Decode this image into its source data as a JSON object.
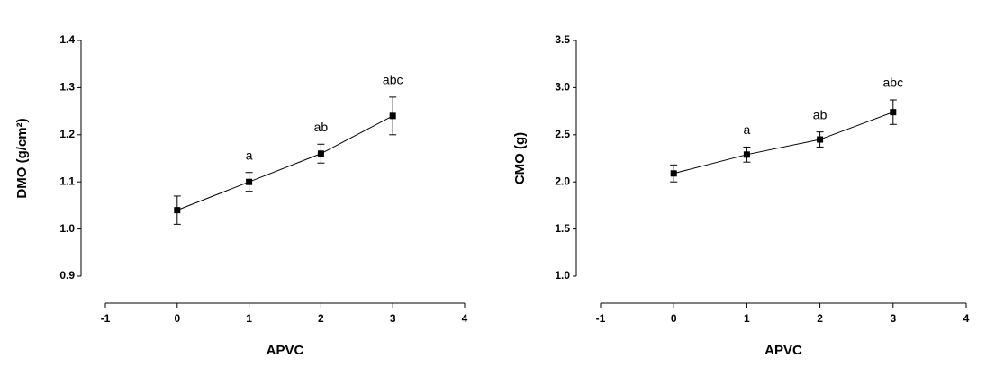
{
  "chart_data": [
    {
      "type": "line",
      "xlabel": "APVC",
      "ylabel": "DMO (g/cm²)",
      "x": [
        0,
        1,
        2,
        3
      ],
      "values": [
        1.04,
        1.1,
        1.16,
        1.24
      ],
      "errors": [
        0.03,
        0.02,
        0.02,
        0.04
      ],
      "value_labels": [
        null,
        "a",
        "ab",
        "abc"
      ],
      "color": "#000000",
      "xlim": [
        -1,
        4
      ],
      "xticks": [
        -1,
        0,
        1,
        2,
        3,
        4
      ],
      "ylim": [
        0.9,
        1.4
      ],
      "yticks": [
        0.9,
        {
          "value": 1.0,
          "label": "1.0"
        },
        1.1,
        1.2,
        1.3,
        1.4
      ]
    },
    {
      "type": "line",
      "xlabel": "APVC",
      "ylabel": "CMO (g)",
      "x": [
        0,
        1,
        2,
        3
      ],
      "values": [
        2.09,
        2.29,
        2.45,
        2.74
      ],
      "errors": [
        0.09,
        0.08,
        0.08,
        0.13
      ],
      "value_labels": [
        null,
        "a",
        "ab",
        "abc"
      ],
      "color": "#000000",
      "xlim": [
        -1,
        4
      ],
      "xticks": [
        -1,
        0,
        1,
        2,
        3,
        4
      ],
      "ylim": [
        1.0,
        3.5
      ],
      "yticks": [
        {
          "value": 1.0,
          "label": "1.0"
        },
        1.5,
        {
          "value": 2.0,
          "label": "2.0"
        },
        2.5,
        {
          "value": 3.0,
          "label": "3.0"
        },
        3.5
      ]
    }
  ]
}
